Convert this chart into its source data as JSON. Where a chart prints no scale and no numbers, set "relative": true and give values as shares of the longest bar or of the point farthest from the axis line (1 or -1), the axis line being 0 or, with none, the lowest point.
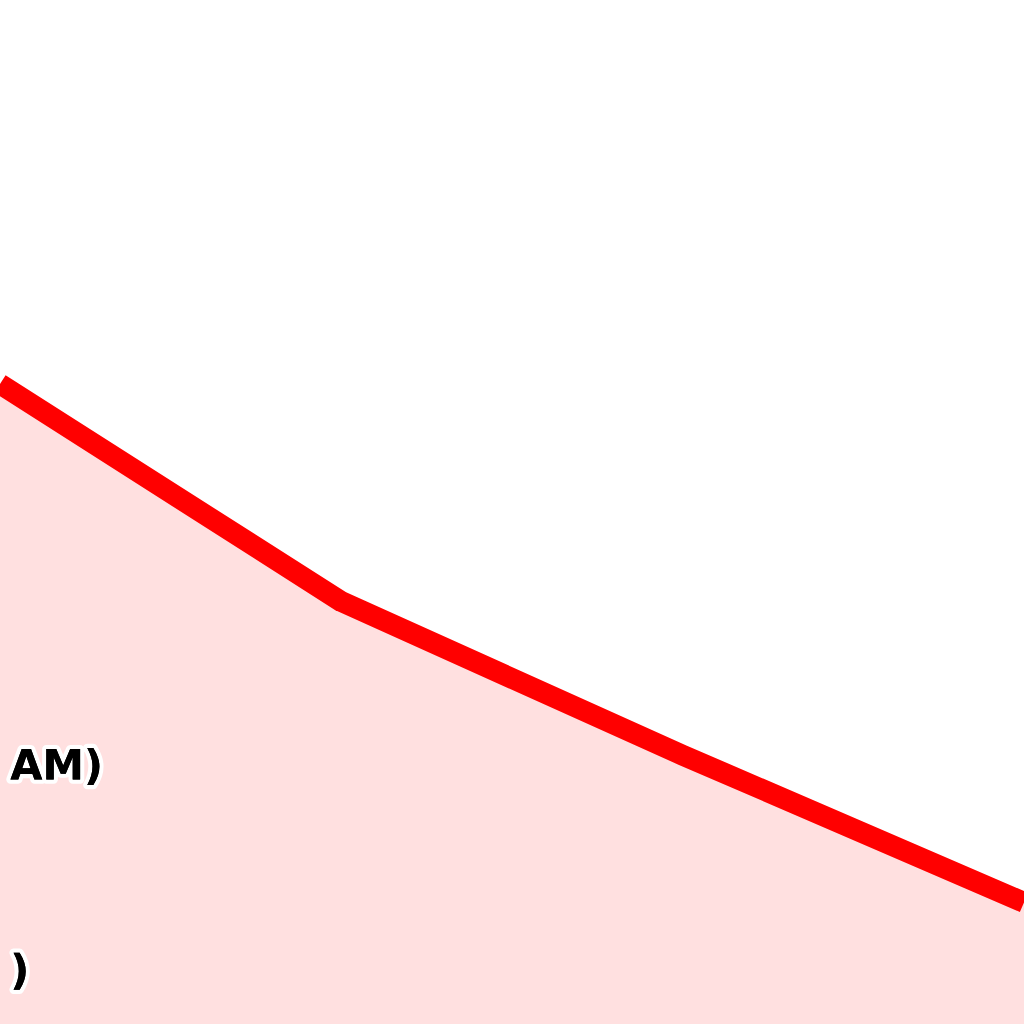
{
  "chart_data": {
    "type": "area",
    "relative": true,
    "categories": [
      null,
      null,
      null,
      null
    ],
    "series": [
      {
        "color": "#ff0000",
        "values": [
          1,
          0.66,
          0.42,
          0.19
        ]
      }
    ],
    "annotations": [
      "AM)",
      ")"
    ]
  }
}
